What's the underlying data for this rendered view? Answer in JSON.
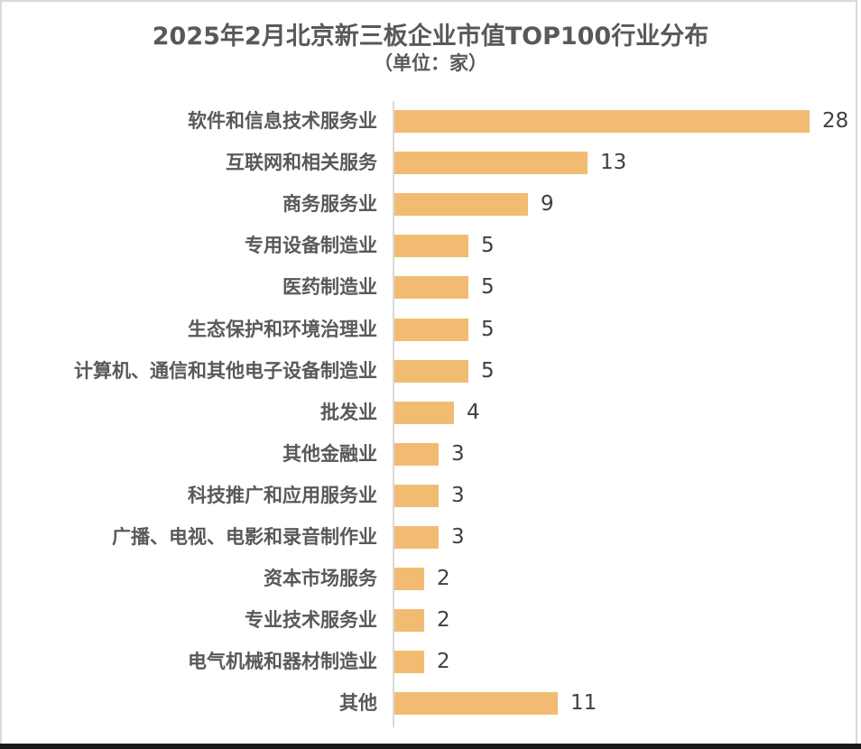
{
  "chart_data": {
    "type": "bar",
    "orientation": "horizontal",
    "title": "2025年2月北京新三板企业市值TOP100行业分布",
    "subtitle": "（单位：家）",
    "xlabel": "",
    "ylabel": "",
    "grid": false,
    "legend": null,
    "bar_color": "#f1bc72",
    "categories": [
      "软件和信息技术服务业",
      "互联网和相关服务",
      "商务服务业",
      "专用设备制造业",
      "医药制造业",
      "生态保护和环境治理业",
      "计算机、通信和其他电子设备制造业",
      "批发业",
      "其他金融业",
      "科技推广和应用服务业",
      "广播、电视、电影和录音制作业",
      "资本市场服务",
      "专业技术服务业",
      "电气机械和器材制造业",
      "其他"
    ],
    "values": [
      28,
      13,
      9,
      5,
      5,
      5,
      5,
      4,
      3,
      3,
      3,
      2,
      2,
      2,
      11
    ],
    "xlim": [
      0,
      28
    ]
  },
  "rows": [
    {
      "label": "软件和信息技术服务业",
      "value": "28"
    },
    {
      "label": "互联网和相关服务",
      "value": "13"
    },
    {
      "label": "商务服务业",
      "value": "9"
    },
    {
      "label": "专用设备制造业",
      "value": "5"
    },
    {
      "label": "医药制造业",
      "value": "5"
    },
    {
      "label": "生态保护和环境治理业",
      "value": "5"
    },
    {
      "label": "计算机、通信和其他电子设备制造业",
      "value": "5"
    },
    {
      "label": "批发业",
      "value": "4"
    },
    {
      "label": "其他金融业",
      "value": "3"
    },
    {
      "label": "科技推广和应用服务业",
      "value": "3"
    },
    {
      "label": "广播、电视、电影和录音制作业",
      "value": "3"
    },
    {
      "label": "资本市场服务",
      "value": "2"
    },
    {
      "label": "专业技术服务业",
      "value": "2"
    },
    {
      "label": "电气机械和器材制造业",
      "value": "2"
    },
    {
      "label": "其他",
      "value": "11"
    }
  ]
}
